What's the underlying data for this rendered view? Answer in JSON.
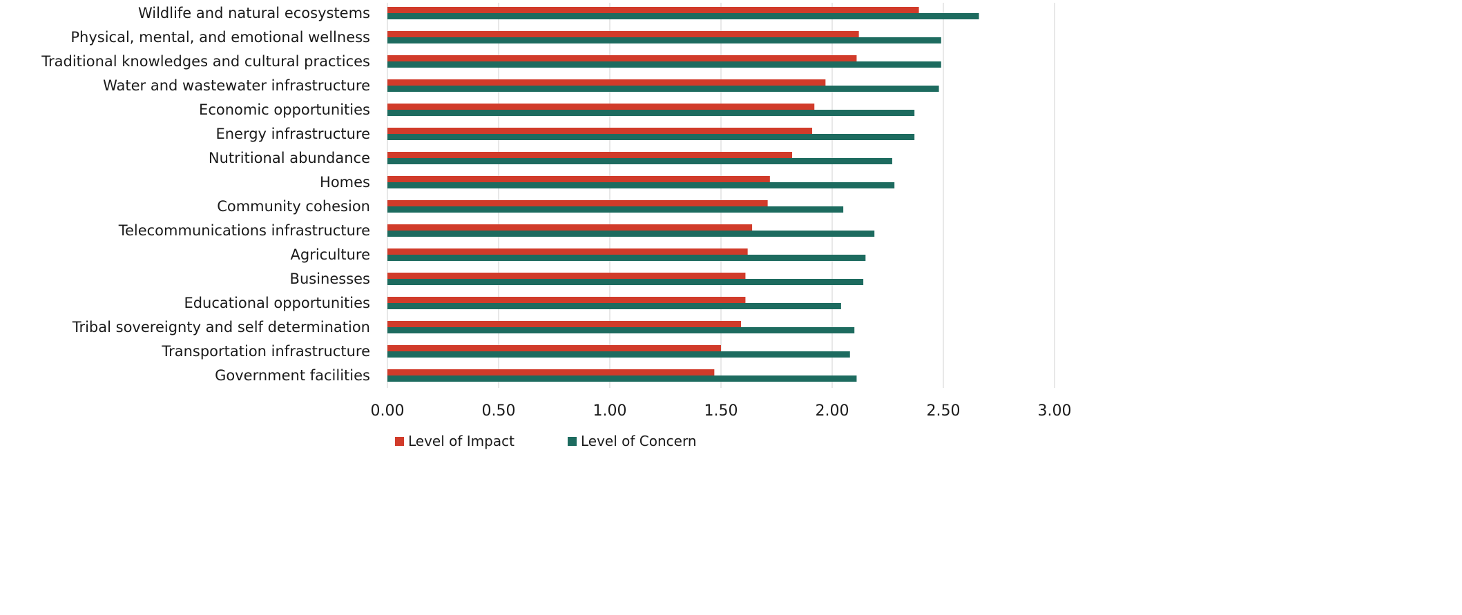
{
  "chart_data": {
    "type": "bar",
    "orientation": "horizontal",
    "title": "",
    "xlabel": "",
    "ylabel": "",
    "xlim": [
      0,
      3
    ],
    "x_ticks": [
      0,
      0.5,
      1,
      1.5,
      2,
      2.5,
      3
    ],
    "x_tick_labels": [
      "0.00",
      "0.50",
      "1.00",
      "1.50",
      "2.00",
      "2.50",
      "3.00"
    ],
    "grid": "vertical",
    "legend_position": "bottom",
    "categories": [
      "Wildlife and natural ecosystems",
      "Physical, mental, and emotional wellness",
      "Traditional knowledges and cultural practices",
      "Water and wastewater infrastructure",
      "Economic opportunities",
      "Energy infrastructure",
      "Nutritional abundance",
      "Homes",
      "Community cohesion",
      "Telecommunications infrastructure",
      "Agriculture",
      "Businesses",
      "Educational opportunities",
      "Tribal sovereignty and self determination",
      "Transportation infrastructure",
      "Government facilities"
    ],
    "series": [
      {
        "name": "Level of Impact",
        "color": "#d13b2a",
        "values": [
          2.39,
          2.12,
          2.11,
          1.97,
          1.92,
          1.91,
          1.82,
          1.72,
          1.71,
          1.64,
          1.62,
          1.61,
          1.61,
          1.59,
          1.5,
          1.47
        ]
      },
      {
        "name": "Level of Concern",
        "color": "#1d6b5f",
        "values": [
          2.66,
          2.49,
          2.49,
          2.48,
          2.37,
          2.37,
          2.27,
          2.28,
          2.05,
          2.19,
          2.15,
          2.14,
          2.04,
          2.1,
          2.08,
          2.11
        ]
      }
    ]
  }
}
